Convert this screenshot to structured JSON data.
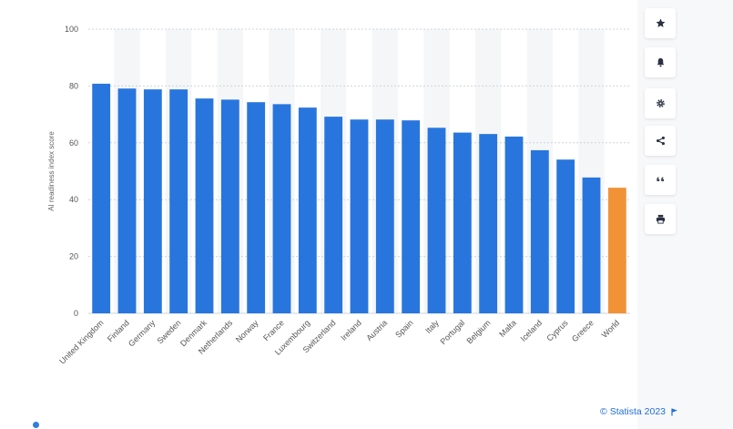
{
  "chart_data": {
    "type": "bar",
    "title": "",
    "xlabel": "",
    "ylabel": "AI readiness index score",
    "ylim": [
      0,
      100
    ],
    "yticks": [
      0,
      20,
      40,
      60,
      80,
      100
    ],
    "grid": true,
    "categories": [
      "United Kingdom",
      "Finland",
      "Germany",
      "Sweden",
      "Denmark",
      "Netherlands",
      "Norway",
      "France",
      "Luxembourg",
      "Switzerland",
      "Ireland",
      "Austria",
      "Spain",
      "Italy",
      "Portugal",
      "Belgium",
      "Malta",
      "Iceland",
      "Cyprus",
      "Greece",
      "World"
    ],
    "values": [
      80.8,
      79.1,
      78.8,
      78.8,
      75.6,
      75.2,
      74.3,
      73.6,
      72.4,
      69.2,
      68.2,
      68.2,
      67.9,
      65.3,
      63.6,
      63.1,
      62.2,
      57.4,
      54.1,
      47.8,
      44.2
    ],
    "bar_color": "#2876dd",
    "highlight_color": "#f19237",
    "highlight_category": "World"
  },
  "toolbar": {
    "items": [
      {
        "name": "favorite",
        "icon": "star-icon"
      },
      {
        "name": "notification",
        "icon": "bell-icon"
      },
      {
        "name": "settings",
        "icon": "gear-icon"
      },
      {
        "name": "share",
        "icon": "share-icon"
      },
      {
        "name": "cite",
        "icon": "quote-icon"
      },
      {
        "name": "print",
        "icon": "print-icon"
      }
    ]
  },
  "credit": {
    "text": "© Statista 2023",
    "icon": "flag-icon"
  }
}
